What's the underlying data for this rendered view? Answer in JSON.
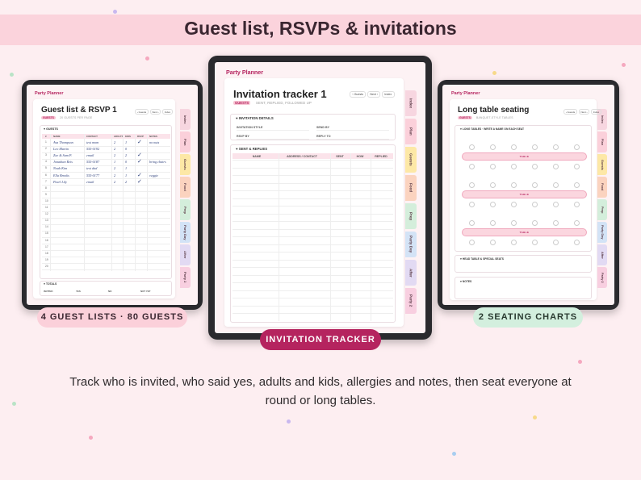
{
  "header": {
    "title": "Guest list, RSVPs & invitations"
  },
  "tabs": [
    "Index",
    "Plan",
    "Guests",
    "Food",
    "Prep",
    "Party Day",
    "After",
    "Party 2"
  ],
  "guest_list": {
    "brand": "Party Planner",
    "title": "Guest list & RSVP 1",
    "nav": [
      "‹ Guests",
      "Next ›",
      "Index"
    ],
    "tag": "GUESTS",
    "subtitle": "20 GUESTS PER PAGE",
    "section": "♥ GUESTS",
    "columns": [
      "#",
      "NAME",
      "CONTACT",
      "ADULTS",
      "KIDS",
      "RSVP",
      "NOTES"
    ],
    "rows": [
      [
        1,
        "Ava Thompson",
        "text mom",
        2,
        1,
        "✓",
        "no nuts"
      ],
      [
        2,
        "Leo Martin",
        "555-0192",
        2,
        0
      ],
      [
        3,
        "Zoe & Sam P.",
        "email",
        2,
        2,
        "✓"
      ],
      [
        4,
        "Jonathan Reis",
        "555-0187",
        1,
        0,
        "✓",
        "bring chairs"
      ],
      [
        5,
        "Noah Kim",
        "text dad",
        2,
        1
      ],
      [
        6,
        "Ella Brooks",
        "555-0177",
        2,
        1,
        "✓",
        "veggie"
      ],
      [
        7,
        "Pearl Lily",
        "email",
        2,
        2,
        "✓"
      ],
      [
        8
      ],
      [
        9
      ],
      [
        10
      ],
      [
        11
      ],
      [
        12
      ],
      [
        13
      ],
      [
        14
      ],
      [
        15
      ],
      [
        16
      ],
      [
        17
      ],
      [
        18
      ],
      [
        19
      ],
      [
        20
      ]
    ],
    "totals": {
      "heading": "♥ TOTALS",
      "labels": [
        "INVITED",
        "YES",
        "NO",
        "NOT YET"
      ]
    }
  },
  "invitation_tracker": {
    "brand": "Party Planner",
    "title": "Invitation tracker 1",
    "nav": [
      "‹ Guests",
      "Next ›",
      "Index"
    ],
    "tag": "GUESTS",
    "subtitle": "SENT, REPLIED, FOLLOWED UP",
    "details_heading": "♥ INVITATION DETAILS",
    "details": [
      "INVITATION STYLE",
      "SEND BY",
      "RSVP BY",
      "REPLY TO"
    ],
    "sent_heading": "♥ SENT & REPLIES",
    "columns": [
      "NAME",
      "ADDRESS / CONTACT",
      "SENT",
      "HOW",
      "REPLIED"
    ]
  },
  "seating": {
    "brand": "Party Planner",
    "title": "Long table seating",
    "nav": [
      "‹ Guests",
      "Next ›",
      "Index"
    ],
    "tag": "GUESTS",
    "subtitle": "BANQUET-STYLE TABLES",
    "section": "♥ LONG TABLES · WRITE A NAME ON EACH SEAT",
    "tables": [
      "TABLE",
      "TABLE",
      "TABLE"
    ],
    "head_table": "♥ HEAD TABLE & SPECIAL SEATS",
    "notes": "♥ NOTES"
  },
  "badges": [
    "4 GUEST LISTS · 80 GUESTS",
    "INVITATION TRACKER",
    "2 SEATING CHARTS"
  ],
  "description": "Track who is invited, who said yes, adults and kids, allergies and notes, then seat everyone at round or long tables."
}
